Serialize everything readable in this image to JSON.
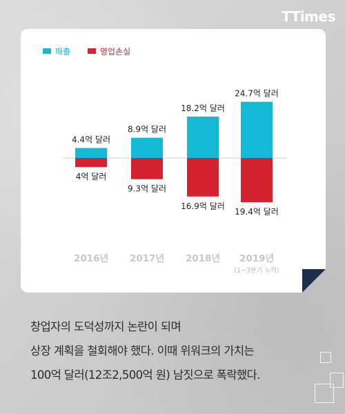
{
  "brand": {
    "logo_t1": "T",
    "logo_t2": "Times"
  },
  "colors": {
    "revenue": "#14b9d6",
    "loss": "#d4222e",
    "card": "#ffffff",
    "fold": "#1f2f4a"
  },
  "chart_data": {
    "type": "bar",
    "title": "",
    "xlabel": "",
    "ylabel": "",
    "categories": [
      "2016년",
      "2017년",
      "2018년",
      "2019년"
    ],
    "category_notes": [
      "",
      "",
      "",
      "(1~3분기 누적)"
    ],
    "series": [
      {
        "name": "매출",
        "values": [
          4.4,
          8.9,
          18.2,
          24.7
        ],
        "labels": [
          "4.4억 달러",
          "8.9억 달러",
          "18.2억 달러",
          "24.7억 달러"
        ]
      },
      {
        "name": "영업손실",
        "values": [
          -4.0,
          -9.3,
          -16.9,
          -19.4
        ],
        "labels": [
          "4억 달러",
          "9.3억 달러",
          "16.9억 달러",
          "19.4억 달러"
        ]
      }
    ],
    "ylim": [
      -22,
      26
    ],
    "unit": "억 달러",
    "legend_position": "top-left",
    "grid": false
  },
  "caption": {
    "line1": "창업자의 도덕성까지 논란이 되며",
    "line2": "상장 계획을 철회해야 했다. 이때 위워크의 가치는",
    "line3": "100억 달러(12조2,500억 원) 남짓으로 폭락했다."
  }
}
